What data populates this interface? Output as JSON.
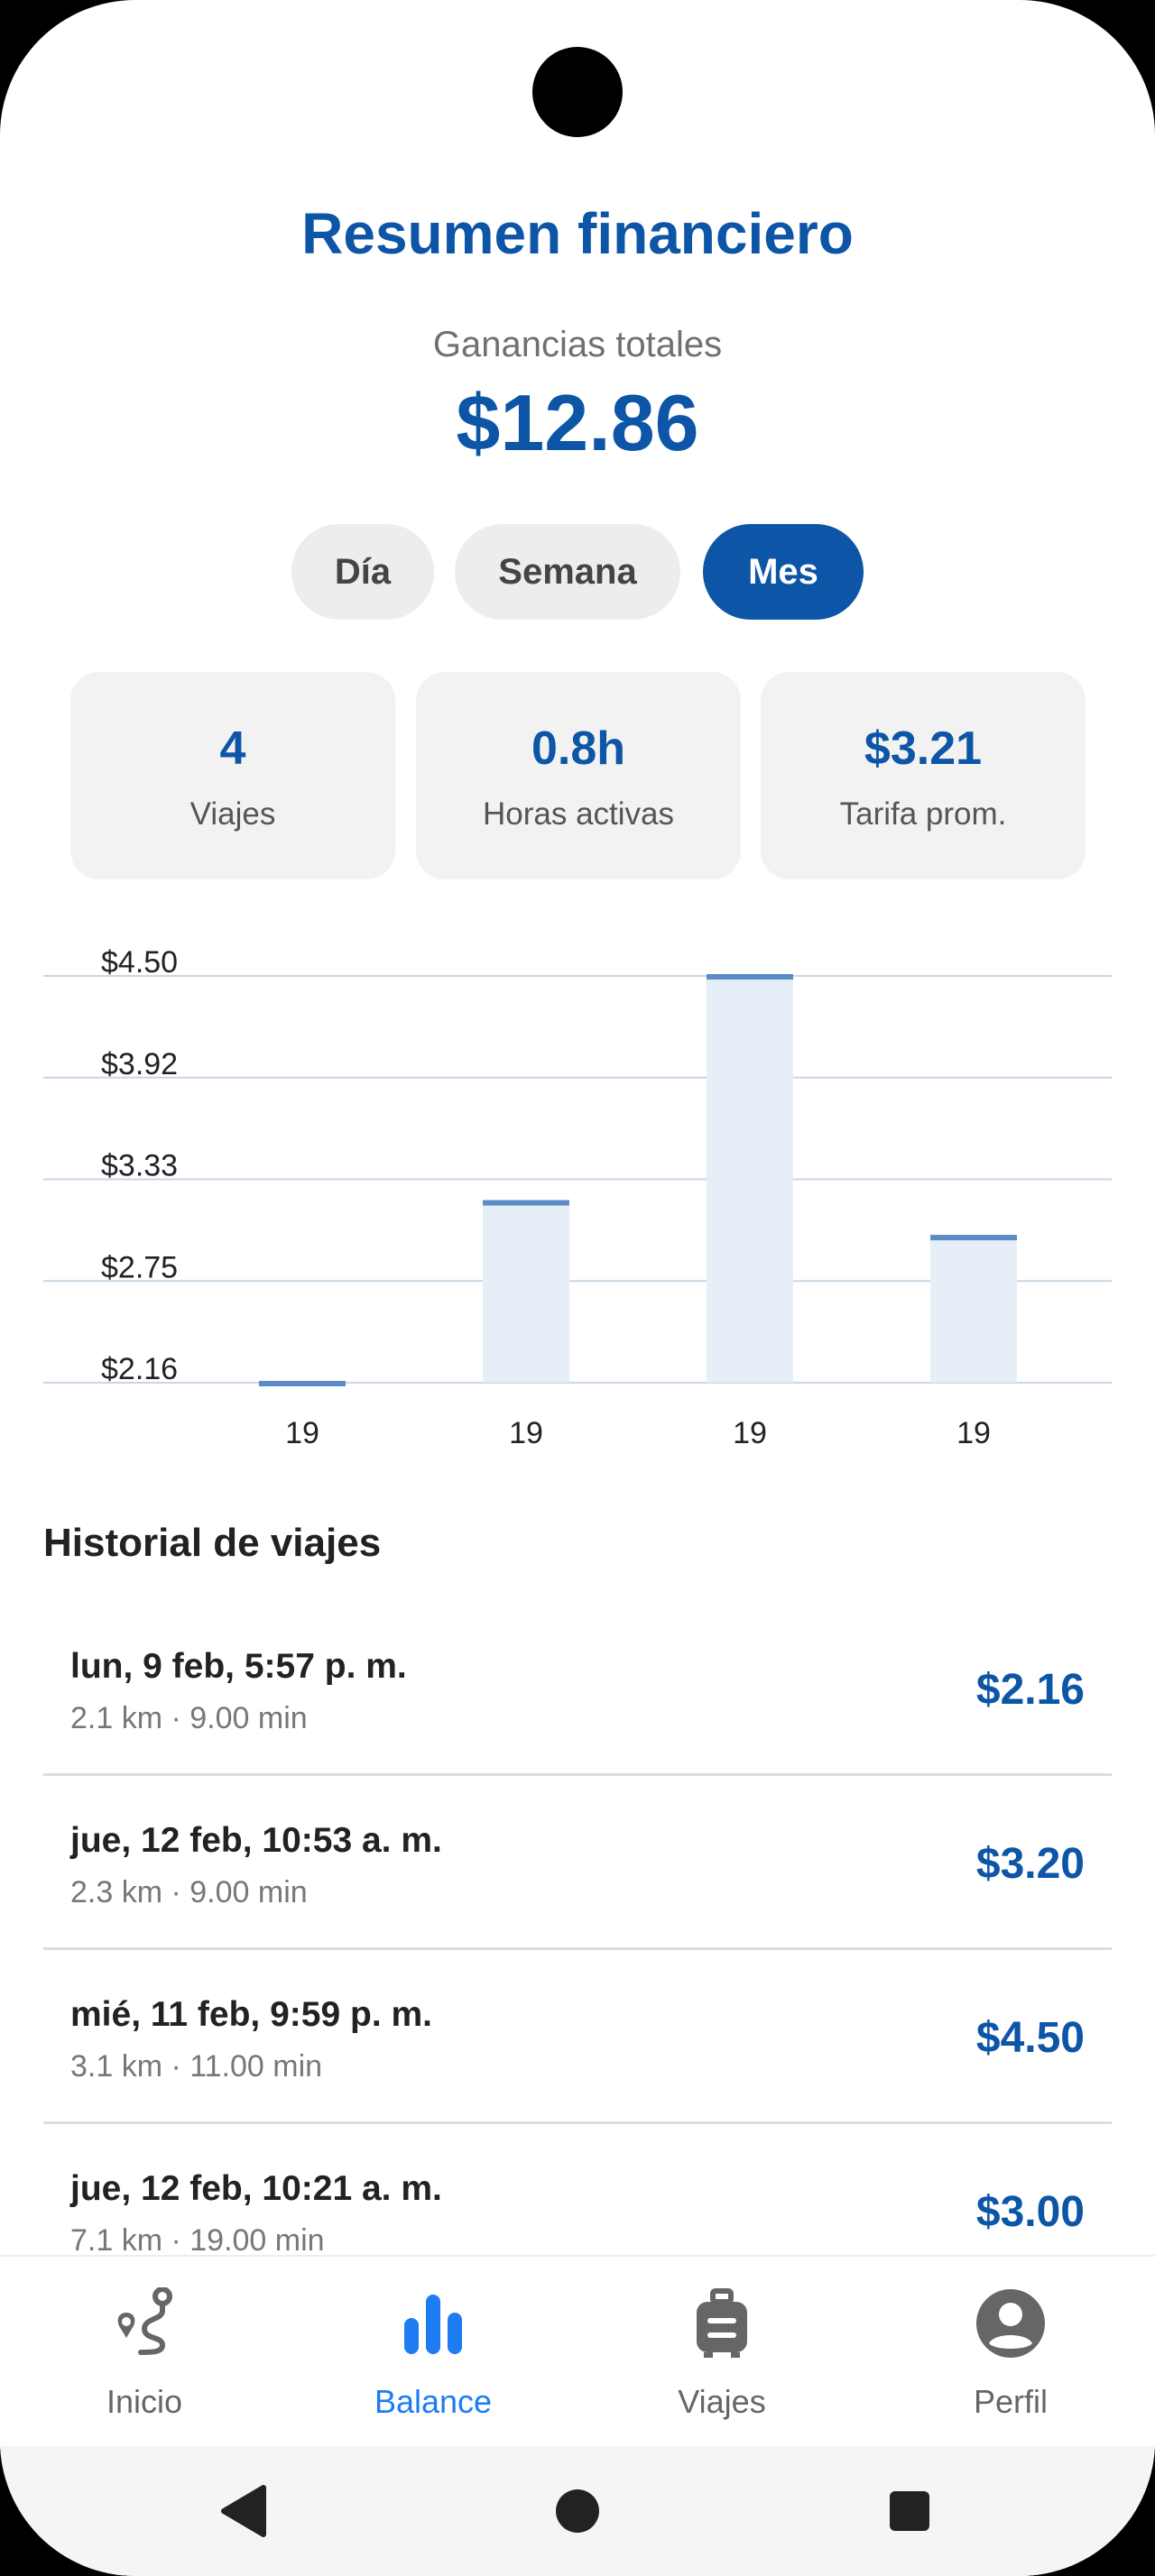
{
  "header": {
    "title": "Resumen financiero"
  },
  "earnings": {
    "label": "Ganancias totales",
    "value": "$12.86"
  },
  "periods": {
    "day": "Día",
    "week": "Semana",
    "month": "Mes",
    "selected": "Mes"
  },
  "stats": [
    {
      "value": "4",
      "label": "Viajes"
    },
    {
      "value": "0.8h",
      "label": "Horas activas"
    },
    {
      "value": "$3.21",
      "label": "Tarifa prom."
    }
  ],
  "chart_data": {
    "type": "bar",
    "categories": [
      "19",
      "19",
      "19",
      "19"
    ],
    "values": [
      2.16,
      3.2,
      4.5,
      3.0
    ],
    "yticks": [
      "$4.50",
      "$3.92",
      "$3.33",
      "$2.75",
      "$2.16"
    ],
    "ylim": [
      2.16,
      4.5
    ],
    "grid": true,
    "bar_color": "#E6EEF7",
    "bar_top_color": "#5B8CC7"
  },
  "history": {
    "title": "Historial de viajes",
    "trips": [
      {
        "date": "lun, 9 feb, 5:57 p. m.",
        "meta": "2.1 km · 9.00 min",
        "price": "$2.16"
      },
      {
        "date": "jue, 12 feb, 10:53 a. m.",
        "meta": "2.3 km · 9.00 min",
        "price": "$3.20"
      },
      {
        "date": "mié, 11 feb, 9:59 p. m.",
        "meta": "3.1 km · 11.00 min",
        "price": "$4.50"
      },
      {
        "date": "jue, 12 feb, 10:21 a. m.",
        "meta": "7.1 km · 19.00 min",
        "price": "$3.00"
      }
    ]
  },
  "nav": {
    "items": [
      {
        "label": "Inicio",
        "icon": "route-icon"
      },
      {
        "label": "Balance",
        "icon": "bar-chart-icon"
      },
      {
        "label": "Viajes",
        "icon": "luggage-icon"
      },
      {
        "label": "Perfil",
        "icon": "account-icon"
      }
    ],
    "active": "Balance"
  },
  "colors": {
    "primary": "#0D55A6",
    "accent": "#1E7CF2"
  }
}
